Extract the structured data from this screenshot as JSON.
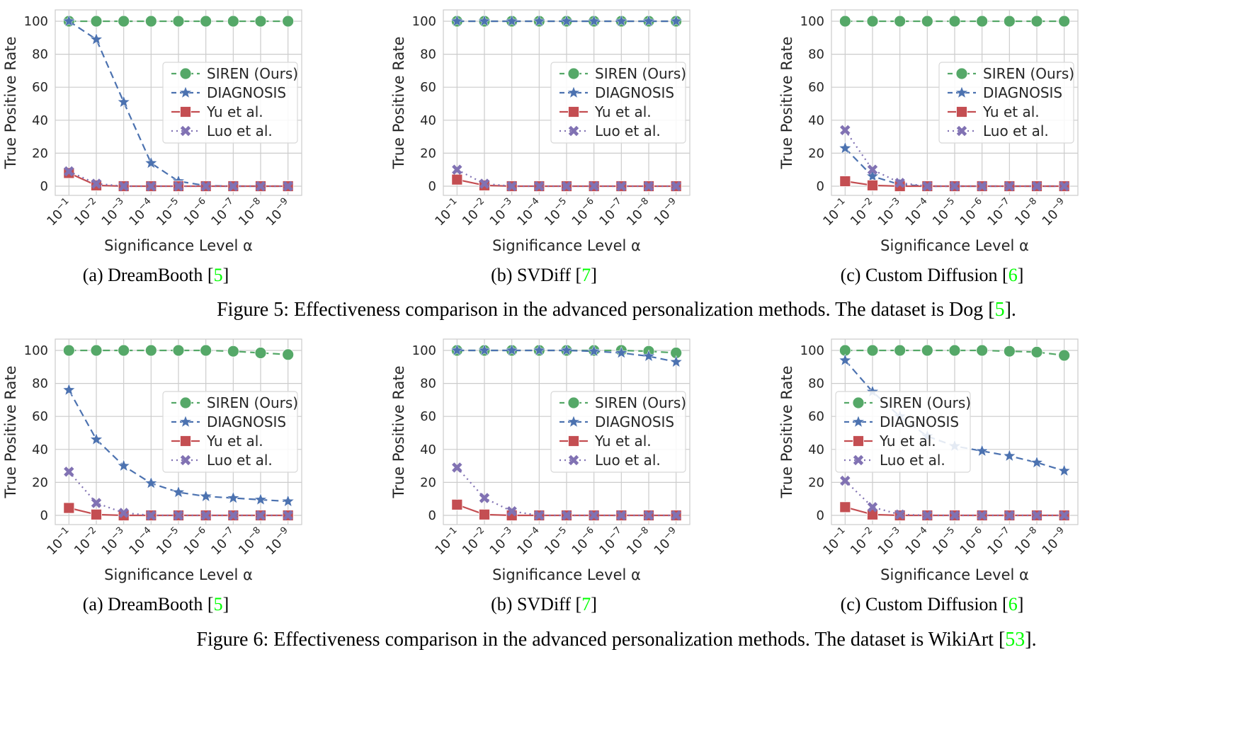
{
  "figures": [
    {
      "label": "Figure 5:",
      "text_before": "Effectiveness comparison in the advanced personalization methods. The dataset is Dog [",
      "ref": "5",
      "text_after": "]."
    },
    {
      "label": "Figure 6:",
      "text_before": "Effectiveness comparison in the advanced personalization methods. The dataset is WikiArt [",
      "ref": "53",
      "text_after": "]."
    }
  ],
  "colors": {
    "siren": "#55a868",
    "diagnosis": "#4c72b0",
    "yu": "#c44e52",
    "luo": "#8172b3",
    "ref": "#00ff00",
    "grid": "#cccccc"
  },
  "legend_labels": [
    "SIREN (Ours)",
    "DIAGNOSIS",
    "Yu et al.",
    "Luo et al."
  ],
  "chart_data": [
    {
      "type": "line",
      "caption_prefix": "(a) DreamBooth [",
      "ref": "5",
      "caption_suffix": "]",
      "xlabel": "Significance Level α",
      "ylabel": "True Positive Rate",
      "x_tick_exponents": [
        "−1",
        "−2",
        "−3",
        "−4",
        "−5",
        "−6",
        "−7",
        "−8",
        "−9"
      ],
      "y_ticks": [
        "0",
        "20",
        "40",
        "60",
        "80",
        "100"
      ],
      "ylim": [
        0,
        100
      ],
      "legend": "center-right",
      "series": [
        {
          "name": "SIREN (Ours)",
          "values": [
            100,
            100,
            100,
            100,
            100,
            100,
            100,
            100,
            100
          ]
        },
        {
          "name": "DIAGNOSIS",
          "values": [
            100,
            89,
            51,
            14,
            3,
            0.3,
            0,
            0,
            0
          ]
        },
        {
          "name": "Yu et al.",
          "values": [
            8,
            0.5,
            0,
            0,
            0,
            0,
            0,
            0,
            0
          ]
        },
        {
          "name": "Luo et al.",
          "values": [
            9,
            1.5,
            0,
            0,
            0,
            0,
            0,
            0,
            0
          ]
        }
      ]
    },
    {
      "type": "line",
      "caption_prefix": "(b) SVDiff [",
      "ref": "7",
      "caption_suffix": "]",
      "xlabel": "Significance Level α",
      "ylabel": "True Positive Rate",
      "x_tick_exponents": [
        "−1",
        "−2",
        "−3",
        "−4",
        "−5",
        "−6",
        "−7",
        "−8",
        "−9"
      ],
      "y_ticks": [
        "0",
        "20",
        "40",
        "60",
        "80",
        "100"
      ],
      "ylim": [
        0,
        100
      ],
      "legend": "center-right",
      "series": [
        {
          "name": "SIREN (Ours)",
          "values": [
            100,
            100,
            100,
            100,
            100,
            100,
            100,
            100,
            100
          ]
        },
        {
          "name": "DIAGNOSIS",
          "values": [
            100,
            100,
            100,
            100,
            100,
            100,
            100,
            100,
            100
          ]
        },
        {
          "name": "Yu et al.",
          "values": [
            4,
            0.5,
            0,
            0,
            0,
            0,
            0,
            0,
            0
          ]
        },
        {
          "name": "Luo et al.",
          "values": [
            10,
            1.5,
            0,
            0,
            0,
            0,
            0,
            0,
            0
          ]
        }
      ]
    },
    {
      "type": "line",
      "caption_prefix": "(c) Custom Diffusion [",
      "ref": "6",
      "caption_suffix": "]",
      "xlabel": "Significance Level α",
      "ylabel": "True Positive Rate",
      "x_tick_exponents": [
        "−1",
        "−2",
        "−3",
        "−4",
        "−5",
        "−6",
        "−7",
        "−8",
        "−9"
      ],
      "y_ticks": [
        "0",
        "20",
        "40",
        "60",
        "80",
        "100"
      ],
      "ylim": [
        0,
        100
      ],
      "legend": "center-right",
      "series": [
        {
          "name": "SIREN (Ours)",
          "values": [
            100,
            100,
            100,
            100,
            100,
            100,
            100,
            100,
            100
          ]
        },
        {
          "name": "DIAGNOSIS",
          "values": [
            23,
            6,
            1,
            0,
            0,
            0,
            0,
            0,
            0
          ]
        },
        {
          "name": "Yu et al.",
          "values": [
            3,
            0.5,
            0,
            0,
            0,
            0,
            0,
            0,
            0
          ]
        },
        {
          "name": "Luo et al.",
          "values": [
            34,
            10,
            2,
            0,
            0,
            0,
            0,
            0,
            0
          ]
        }
      ]
    },
    {
      "type": "line",
      "caption_prefix": "(a) DreamBooth [",
      "ref": "5",
      "caption_suffix": "]",
      "xlabel": "Significance Level α",
      "ylabel": "True Positive Rate",
      "x_tick_exponents": [
        "−1",
        "−2",
        "−3",
        "−4",
        "−5",
        "−6",
        "−7",
        "−8",
        "−9"
      ],
      "y_ticks": [
        "0",
        "20",
        "40",
        "60",
        "80",
        "100"
      ],
      "ylim": [
        0,
        100
      ],
      "legend": "center-right",
      "series": [
        {
          "name": "SIREN (Ours)",
          "values": [
            100,
            100,
            100,
            100,
            100,
            100,
            99.5,
            98.5,
            97.5
          ]
        },
        {
          "name": "DIAGNOSIS",
          "values": [
            76,
            46,
            30,
            19.5,
            14,
            11.5,
            10.5,
            9.5,
            8.5
          ]
        },
        {
          "name": "Yu et al.",
          "values": [
            4.5,
            0.5,
            0,
            0,
            0,
            0,
            0,
            0,
            0
          ]
        },
        {
          "name": "Luo et al.",
          "values": [
            26.5,
            7.5,
            1.5,
            0,
            0,
            0,
            0,
            0,
            0
          ]
        }
      ]
    },
    {
      "type": "line",
      "caption_prefix": "(b) SVDiff [",
      "ref": "7",
      "caption_suffix": "]",
      "xlabel": "Significance Level α",
      "ylabel": "True Positive Rate",
      "x_tick_exponents": [
        "−1",
        "−2",
        "−3",
        "−4",
        "−5",
        "−6",
        "−7",
        "−8",
        "−9"
      ],
      "y_ticks": [
        "0",
        "20",
        "40",
        "60",
        "80",
        "100"
      ],
      "ylim": [
        0,
        100
      ],
      "legend": "center-right",
      "series": [
        {
          "name": "SIREN (Ours)",
          "values": [
            100,
            100,
            100,
            100,
            100,
            100,
            100,
            99.5,
            98.5
          ]
        },
        {
          "name": "DIAGNOSIS",
          "values": [
            100,
            100,
            100,
            100,
            100,
            99.5,
            98.5,
            96.5,
            93
          ]
        },
        {
          "name": "Yu et al.",
          "values": [
            6.5,
            0.5,
            0,
            0,
            0,
            0,
            0,
            0,
            0
          ]
        },
        {
          "name": "Luo et al.",
          "values": [
            29,
            10.5,
            2.5,
            0,
            0,
            0,
            0,
            0,
            0
          ]
        }
      ]
    },
    {
      "type": "line",
      "caption_prefix": "(c) Custom Diffusion [",
      "ref": "6",
      "caption_suffix": "]",
      "xlabel": "Significance Level α",
      "ylabel": "True Positive Rate",
      "x_tick_exponents": [
        "−1",
        "−2",
        "−3",
        "−4",
        "−5",
        "−6",
        "−7",
        "−8",
        "−9"
      ],
      "y_ticks": [
        "0",
        "20",
        "40",
        "60",
        "80",
        "100"
      ],
      "ylim": [
        0,
        100
      ],
      "legend": "center-left",
      "series": [
        {
          "name": "SIREN (Ours)",
          "values": [
            100,
            100,
            100,
            100,
            100,
            100,
            99.5,
            99,
            97
          ]
        },
        {
          "name": "DIAGNOSIS",
          "values": [
            94,
            75,
            60,
            48,
            42,
            39,
            36,
            32,
            27
          ]
        },
        {
          "name": "Yu et al.",
          "values": [
            5,
            0.5,
            0,
            0,
            0,
            0,
            0,
            0,
            0
          ]
        },
        {
          "name": "Luo et al.",
          "values": [
            21,
            5,
            0.5,
            0,
            0,
            0,
            0,
            0,
            0
          ]
        }
      ]
    }
  ]
}
